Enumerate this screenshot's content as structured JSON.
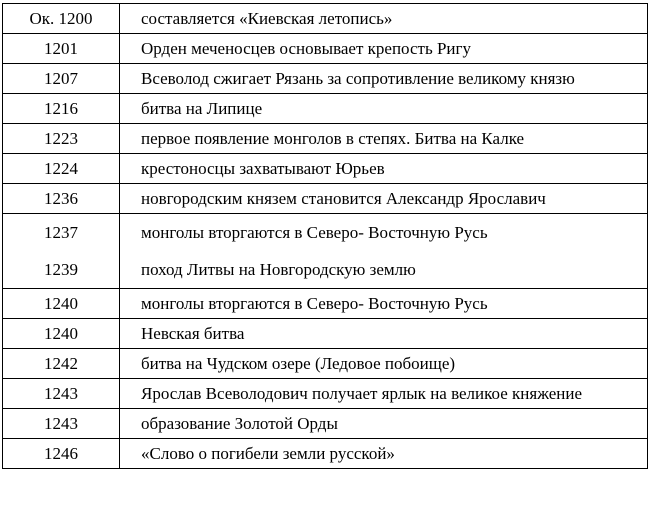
{
  "page": {
    "type": "chronology-table-page",
    "background_color": "#ffffff",
    "text_color": "#000000",
    "border_color": "#000000"
  },
  "table": {
    "columns": [
      "year",
      "event"
    ],
    "rows": [
      {
        "year": "Ок. 1200",
        "event": "составляется «Киевская летопись»"
      },
      {
        "year": "1201",
        "event": "Орден меченосцев основывает крепость Ригу"
      },
      {
        "year": "1207",
        "event": "Всеволод сжигает Рязань за сопротивление великому князю"
      },
      {
        "year": "1216",
        "event": "битва на Липице"
      },
      {
        "year": "1223",
        "event": "первое появление монголов в степях. Битва на Калке"
      },
      {
        "year": "1224",
        "event": "крестоносцы захватывают Юрьев"
      },
      {
        "year": "1236",
        "event": "новгородским князем становится Александр Ярославич"
      },
      {
        "year": "1237",
        "event": "монголы вторгаются в Северо- Восточную Русь",
        "merge_with_next": true,
        "spacious": true
      },
      {
        "year": "1239",
        "event": "поход Литвы на Новгородскую землю",
        "merged_into_prev": true,
        "spacious": true
      },
      {
        "year": "1240",
        "event": "монголы вторгаются в Северо- Восточную Русь"
      },
      {
        "year": "1240",
        "event": "Невская битва"
      },
      {
        "year": "1242",
        "event": "битва на Чудском озере (Ледовое побоище)"
      },
      {
        "year": "1243",
        "event": "Ярослав Всеволодович получает ярлык на великое княжение"
      },
      {
        "year": "1243",
        "event": "образование Золотой Орды"
      },
      {
        "year": "1246",
        "event": "«Слово о погибели земли русской»"
      }
    ]
  }
}
